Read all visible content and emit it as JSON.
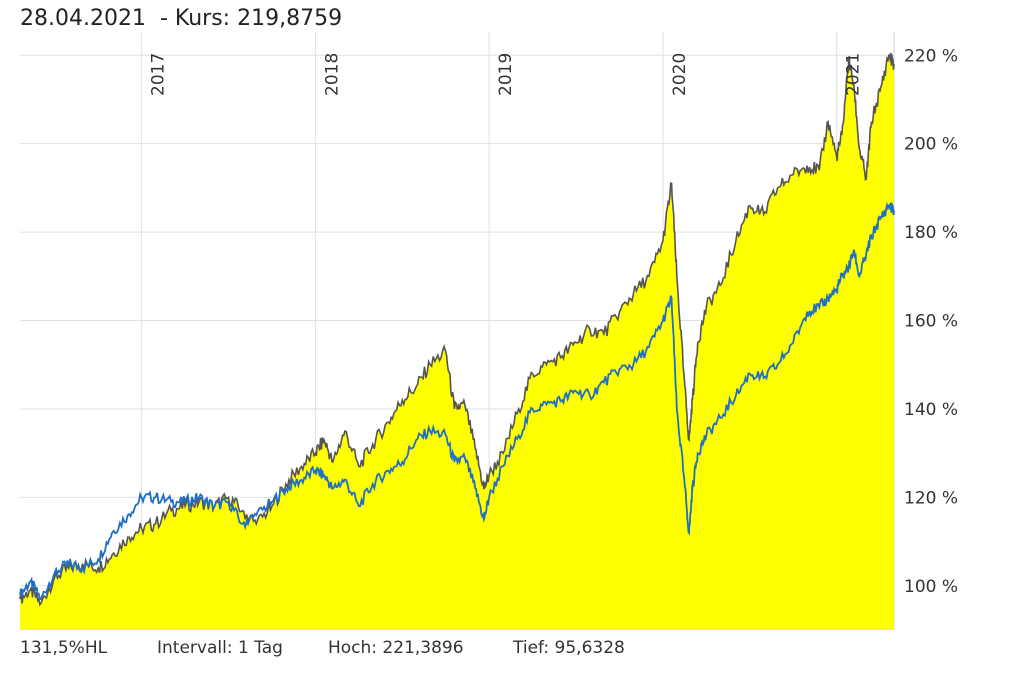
{
  "header": {
    "date": "28.04.2021",
    "kurs": "- Kurs: 219,8759"
  },
  "footer": {
    "hl": "131,5%HL",
    "intervall": "Intervall: 1 Tag",
    "hoch": "Hoch: 221,3896",
    "tief": "Tief: 95,6328"
  },
  "colors": {
    "fill": "#ffff00",
    "main_line": "#555555",
    "benchmark_line": "#1f6fc5",
    "grid": "#e0e0e0"
  },
  "chart_data": {
    "type": "area",
    "x_ticks": [
      "2017",
      "2018",
      "2019",
      "2020",
      "2021"
    ],
    "y_ticks": [
      "100 %",
      "120 %",
      "140 %",
      "160 %",
      "180 %",
      "200 %",
      "220 %"
    ],
    "y_tick_values": [
      100,
      120,
      140,
      160,
      180,
      200,
      220
    ],
    "ylim": [
      90,
      223
    ],
    "xlim": [
      2016.3,
      2021.33
    ],
    "grid": true,
    "series": [
      {
        "style": "area",
        "x": [
          2016.3,
          2016.36,
          2016.42,
          2016.5,
          2016.58,
          2016.66,
          2016.75,
          2016.83,
          2016.92,
          2017.0,
          2017.08,
          2017.17,
          2017.25,
          2017.33,
          2017.42,
          2017.5,
          2017.58,
          2017.66,
          2017.75,
          2017.83,
          2017.92,
          2018.0,
          2018.05,
          2018.1,
          2018.17,
          2018.25,
          2018.33,
          2018.42,
          2018.5,
          2018.58,
          2018.66,
          2018.75,
          2018.8,
          2018.86,
          2018.92,
          2018.97,
          2019.0,
          2019.08,
          2019.17,
          2019.25,
          2019.33,
          2019.42,
          2019.5,
          2019.58,
          2019.66,
          2019.75,
          2019.83,
          2019.92,
          2020.0,
          2020.05,
          2020.08,
          2020.12,
          2020.15,
          2020.17,
          2020.2,
          2020.25,
          2020.33,
          2020.42,
          2020.5,
          2020.58,
          2020.66,
          2020.75,
          2020.83,
          2020.9,
          2020.95,
          2021.0,
          2021.03,
          2021.07,
          2021.1,
          2021.13,
          2021.17,
          2021.2,
          2021.25,
          2021.3,
          2021.33
        ],
        "y": [
          97,
          99,
          96,
          102,
          104,
          105,
          104,
          107,
          111,
          113,
          114,
          117,
          118,
          119,
          118,
          120,
          117,
          114,
          118,
          123,
          127,
          130,
          133,
          128,
          135,
          127,
          132,
          137,
          142,
          145,
          150,
          153,
          140,
          141,
          131,
          122,
          125,
          130,
          140,
          148,
          150,
          152,
          155,
          158,
          157,
          162,
          166,
          170,
          178,
          191,
          170,
          148,
          133,
          142,
          155,
          163,
          168,
          178,
          186,
          184,
          190,
          193,
          195,
          194,
          205,
          197,
          202,
          219,
          213,
          199,
          192,
          205,
          212,
          220,
          218
        ]
      },
      {
        "style": "line",
        "x": [
          2016.3,
          2016.36,
          2016.42,
          2016.5,
          2016.58,
          2016.66,
          2016.75,
          2016.83,
          2016.92,
          2017.0,
          2017.08,
          2017.17,
          2017.25,
          2017.33,
          2017.42,
          2017.5,
          2017.58,
          2017.66,
          2017.75,
          2017.83,
          2017.92,
          2018.0,
          2018.05,
          2018.1,
          2018.17,
          2018.25,
          2018.33,
          2018.42,
          2018.5,
          2018.58,
          2018.66,
          2018.75,
          2018.8,
          2018.86,
          2018.92,
          2018.97,
          2019.0,
          2019.08,
          2019.17,
          2019.25,
          2019.33,
          2019.42,
          2019.5,
          2019.58,
          2019.66,
          2019.75,
          2019.83,
          2019.92,
          2020.0,
          2020.05,
          2020.08,
          2020.12,
          2020.15,
          2020.17,
          2020.2,
          2020.25,
          2020.33,
          2020.42,
          2020.5,
          2020.58,
          2020.66,
          2020.75,
          2020.83,
          2020.9,
          2020.95,
          2021.0,
          2021.03,
          2021.07,
          2021.1,
          2021.13,
          2021.17,
          2021.2,
          2021.25,
          2021.3,
          2021.33
        ],
        "y": [
          98,
          101,
          97,
          103,
          105,
          104,
          106,
          112,
          116,
          120,
          120,
          119,
          119,
          120,
          118,
          119,
          114,
          116,
          119,
          122,
          124,
          126,
          125,
          122,
          124,
          118,
          123,
          126,
          128,
          133,
          135,
          134,
          128,
          129,
          122,
          115,
          120,
          127,
          134,
          140,
          141,
          142,
          144,
          143,
          146,
          149,
          150,
          154,
          160,
          165,
          140,
          125,
          112,
          122,
          130,
          134,
          138,
          143,
          148,
          147,
          150,
          155,
          162,
          163,
          165,
          167,
          170,
          172,
          176,
          170,
          175,
          179,
          183,
          186,
          185
        ]
      }
    ]
  }
}
